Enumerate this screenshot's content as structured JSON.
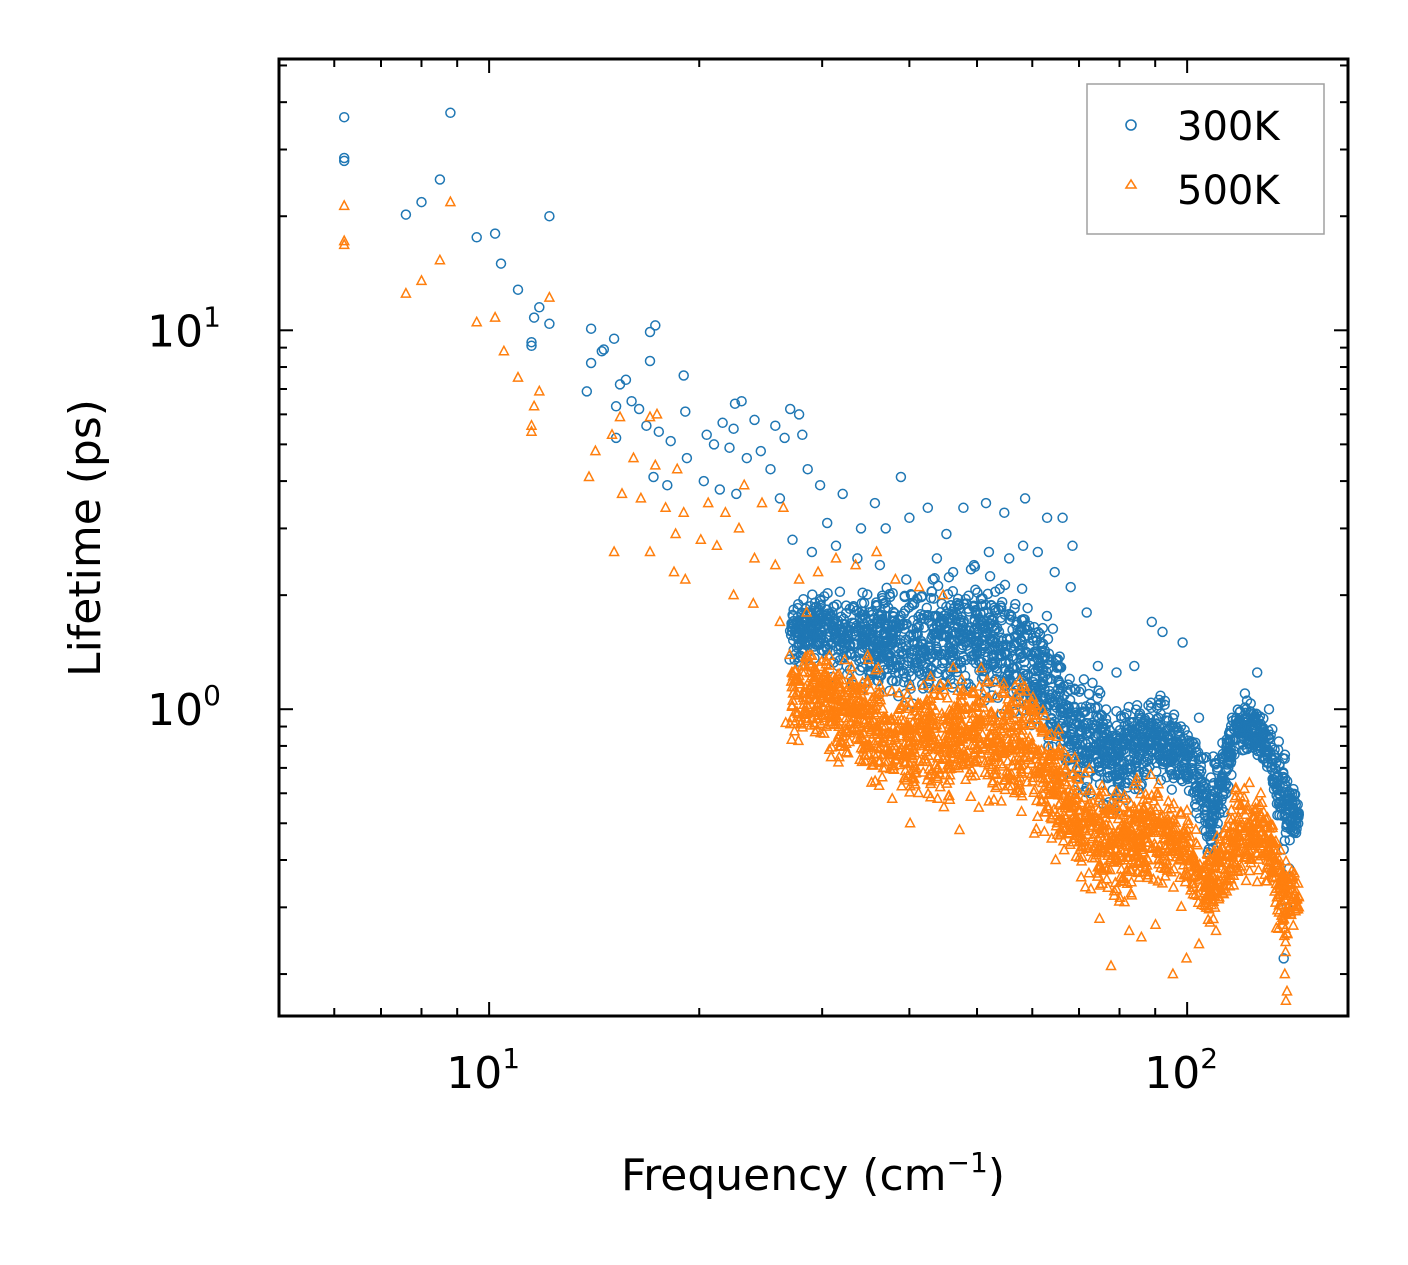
{
  "chart_data": {
    "type": "scatter",
    "title": "",
    "xlabel": "Frequency (cm",
    "xlabel_sup": "−1",
    "xlabel_close": ")",
    "ylabel": "Lifetime (ps)",
    "xscale": "log",
    "yscale": "log",
    "xlim": [
      5.0,
      170.0
    ],
    "ylim": [
      0.155,
      52.0
    ],
    "legend_position": "top-right",
    "x_ticks": [
      {
        "value": 10,
        "base": "10",
        "exp": "1"
      },
      {
        "value": 100,
        "base": "10",
        "exp": "2"
      }
    ],
    "y_ticks": [
      {
        "value": 1,
        "base": "10",
        "exp": "0"
      },
      {
        "value": 10,
        "base": "10",
        "exp": "1"
      }
    ],
    "series": [
      {
        "name": "300K",
        "marker": "circle",
        "color": "#1f77b4",
        "points": [
          [
            6.2,
            36.5
          ],
          [
            6.2,
            28.5
          ],
          [
            6.2,
            28.0
          ],
          [
            8.8,
            37.5
          ],
          [
            8.5,
            25.0
          ],
          [
            8.0,
            21.8
          ],
          [
            7.6,
            20.2
          ],
          [
            12.2,
            20.0
          ],
          [
            9.6,
            17.6
          ],
          [
            10.2,
            18.0
          ],
          [
            10.4,
            15.0
          ],
          [
            11.0,
            12.8
          ],
          [
            11.8,
            11.5
          ],
          [
            11.6,
            10.8
          ],
          [
            12.2,
            10.4
          ],
          [
            11.5,
            9.3
          ],
          [
            11.5,
            9.1
          ],
          [
            14.0,
            10.1
          ],
          [
            17.3,
            10.3
          ],
          [
            17.0,
            9.9
          ],
          [
            15.1,
            9.5
          ],
          [
            14.6,
            8.9
          ],
          [
            14.5,
            8.8
          ],
          [
            14.0,
            8.2
          ],
          [
            17.0,
            8.3
          ],
          [
            15.7,
            7.4
          ],
          [
            15.4,
            7.2
          ],
          [
            19.0,
            7.6
          ],
          [
            13.8,
            6.9
          ],
          [
            16.0,
            6.5
          ],
          [
            15.2,
            6.3
          ],
          [
            16.4,
            6.2
          ],
          [
            19.1,
            6.1
          ],
          [
            23.0,
            6.5
          ],
          [
            22.5,
            6.4
          ],
          [
            27.0,
            6.2
          ],
          [
            27.8,
            6.0
          ],
          [
            24.0,
            5.8
          ],
          [
            21.6,
            5.7
          ],
          [
            22.4,
            5.5
          ],
          [
            25.7,
            5.6
          ],
          [
            26.5,
            5.2
          ],
          [
            28.1,
            5.3
          ],
          [
            16.8,
            5.6
          ],
          [
            17.5,
            5.4
          ],
          [
            15.2,
            5.2
          ],
          [
            18.2,
            5.1
          ],
          [
            20.5,
            5.3
          ],
          [
            21.0,
            5.0
          ],
          [
            22.1,
            4.9
          ],
          [
            23.4,
            4.6
          ],
          [
            24.5,
            4.8
          ],
          [
            25.3,
            4.3
          ],
          [
            28.6,
            4.3
          ],
          [
            19.2,
            4.6
          ],
          [
            17.2,
            4.1
          ],
          [
            18.0,
            3.9
          ],
          [
            20.3,
            4.0
          ],
          [
            21.4,
            3.8
          ],
          [
            22.6,
            3.7
          ],
          [
            26.1,
            3.6
          ],
          [
            29.8,
            3.9
          ],
          [
            32.1,
            3.7
          ],
          [
            35.7,
            3.5
          ],
          [
            38.9,
            4.1
          ],
          [
            42.5,
            3.4
          ],
          [
            30.5,
            3.1
          ],
          [
            34.1,
            3.0
          ],
          [
            37.0,
            3.0
          ],
          [
            40.0,
            3.2
          ],
          [
            45.2,
            2.9
          ],
          [
            47.8,
            3.4
          ],
          [
            51.5,
            3.5
          ],
          [
            54.7,
            3.3
          ],
          [
            58.6,
            3.6
          ],
          [
            63.0,
            3.2
          ],
          [
            66.3,
            3.2
          ],
          [
            68.5,
            2.7
          ],
          [
            27.2,
            2.8
          ],
          [
            29.0,
            2.6
          ],
          [
            31.4,
            2.7
          ],
          [
            33.7,
            2.5
          ],
          [
            36.3,
            2.4
          ],
          [
            39.6,
            2.2
          ],
          [
            43.8,
            2.5
          ],
          [
            46.2,
            2.3
          ],
          [
            49.5,
            2.4
          ],
          [
            52.0,
            2.6
          ],
          [
            55.6,
            2.5
          ],
          [
            58.2,
            2.7
          ],
          [
            61.1,
            2.6
          ],
          [
            64.6,
            2.3
          ],
          [
            68.1,
            2.1
          ],
          [
            71.8,
            1.8
          ],
          [
            74.5,
            1.3
          ],
          [
            79.2,
            1.25
          ],
          [
            84.0,
            1.3
          ],
          [
            89.0,
            1.7
          ],
          [
            92.2,
            1.6
          ],
          [
            98.5,
            1.5
          ],
          [
            104.0,
            0.95
          ],
          [
            109.0,
            0.75
          ],
          [
            116.0,
            0.95
          ],
          [
            121.0,
            1.1
          ],
          [
            126.0,
            1.25
          ],
          [
            131.0,
            1.0
          ],
          [
            136.0,
            0.55
          ],
          [
            138.0,
            0.45
          ],
          [
            140.0,
            0.38
          ],
          [
            139.0,
            0.3
          ],
          [
            137.5,
            0.22
          ]
        ],
        "generated": {
          "n": 2200,
          "seed": 7,
          "xlog_range": [
            1.43,
            2.16
          ],
          "band": [
            {
              "x": 30,
              "lo": 1.2,
              "hi": 2.2
            },
            {
              "x": 40,
              "lo": 0.9,
              "hi": 2.4
            },
            {
              "x": 50,
              "lo": 1.0,
              "hi": 2.6
            },
            {
              "x": 60,
              "lo": 0.75,
              "hi": 2.3
            },
            {
              "x": 70,
              "lo": 0.55,
              "hi": 1.3
            },
            {
              "x": 80,
              "lo": 0.5,
              "hi": 1.1
            },
            {
              "x": 90,
              "lo": 0.6,
              "hi": 1.25
            },
            {
              "x": 100,
              "lo": 0.55,
              "hi": 1.0
            },
            {
              "x": 108,
              "lo": 0.35,
              "hi": 0.75
            },
            {
              "x": 118,
              "lo": 0.7,
              "hi": 1.15
            },
            {
              "x": 128,
              "lo": 0.7,
              "hi": 1.05
            },
            {
              "x": 138,
              "lo": 0.4,
              "hi": 0.8
            },
            {
              "x": 144,
              "lo": 0.45,
              "hi": 0.6
            }
          ]
        }
      },
      {
        "name": "500K",
        "marker": "triangle",
        "color": "#ff7f0e",
        "points": [
          [
            6.2,
            21.3
          ],
          [
            6.2,
            17.2
          ],
          [
            6.2,
            16.8
          ],
          [
            8.8,
            21.8
          ],
          [
            8.5,
            15.3
          ],
          [
            8.0,
            13.5
          ],
          [
            7.6,
            12.5
          ],
          [
            9.6,
            10.5
          ],
          [
            10.2,
            10.8
          ],
          [
            10.5,
            8.8
          ],
          [
            11.0,
            7.5
          ],
          [
            11.8,
            6.9
          ],
          [
            11.6,
            6.3
          ],
          [
            12.2,
            12.2
          ],
          [
            11.5,
            5.6
          ],
          [
            11.5,
            5.4
          ],
          [
            15.0,
            5.3
          ],
          [
            15.4,
            5.9
          ],
          [
            17.0,
            5.9
          ],
          [
            17.4,
            6.0
          ],
          [
            14.2,
            4.8
          ],
          [
            16.1,
            4.6
          ],
          [
            17.3,
            4.4
          ],
          [
            18.6,
            4.3
          ],
          [
            13.9,
            4.1
          ],
          [
            15.5,
            3.7
          ],
          [
            16.5,
            3.6
          ],
          [
            17.9,
            3.4
          ],
          [
            19.0,
            3.3
          ],
          [
            20.6,
            3.5
          ],
          [
            21.8,
            3.3
          ],
          [
            23.2,
            3.9
          ],
          [
            24.6,
            3.5
          ],
          [
            26.4,
            3.4
          ],
          [
            22.8,
            3.0
          ],
          [
            18.5,
            2.9
          ],
          [
            20.1,
            2.8
          ],
          [
            21.2,
            2.7
          ],
          [
            15.1,
            2.6
          ],
          [
            17.0,
            2.6
          ],
          [
            18.4,
            2.3
          ],
          [
            19.1,
            2.2
          ],
          [
            24.0,
            2.5
          ],
          [
            25.7,
            2.4
          ],
          [
            27.8,
            2.2
          ],
          [
            29.6,
            2.3
          ],
          [
            31.4,
            2.5
          ],
          [
            33.5,
            2.4
          ],
          [
            35.9,
            2.6
          ],
          [
            38.2,
            2.2
          ],
          [
            41.3,
            2.1
          ],
          [
            44.7,
            2.0
          ],
          [
            22.4,
            2.0
          ],
          [
            23.9,
            1.9
          ],
          [
            26.1,
            1.7
          ],
          [
            28.5,
            1.8
          ],
          [
            26.6,
            0.92
          ],
          [
            28.0,
            0.92
          ],
          [
            31.5,
            0.82
          ],
          [
            35.3,
            0.64
          ],
          [
            37.8,
            0.58
          ],
          [
            40.1,
            0.5
          ],
          [
            43.9,
            0.58
          ],
          [
            47.2,
            0.48
          ],
          [
            50.3,
            0.55
          ],
          [
            55.0,
            0.66
          ],
          [
            60.4,
            0.47
          ],
          [
            64.8,
            0.4
          ],
          [
            70.5,
            0.36
          ],
          [
            74.9,
            0.28
          ],
          [
            77.8,
            0.21
          ],
          [
            82.6,
            0.26
          ],
          [
            86.0,
            0.25
          ],
          [
            90.1,
            0.27
          ],
          [
            95.4,
            0.2
          ],
          [
            99.8,
            0.22
          ],
          [
            104.0,
            0.24
          ],
          [
            110.0,
            0.26
          ],
          [
            118.0,
            0.38
          ],
          [
            126.0,
            0.35
          ],
          [
            131.0,
            0.38
          ],
          [
            137.0,
            0.27
          ],
          [
            138.0,
            0.2
          ],
          [
            138.5,
            0.17
          ],
          [
            139.0,
            0.18
          ],
          [
            141.5,
            0.36
          ]
        ],
        "generated": {
          "n": 2200,
          "seed": 13,
          "xlog_range": [
            1.43,
            2.16
          ],
          "band": [
            {
              "x": 30,
              "lo": 0.75,
              "hi": 1.6
            },
            {
              "x": 40,
              "lo": 0.5,
              "hi": 1.3
            },
            {
              "x": 50,
              "lo": 0.55,
              "hi": 1.4
            },
            {
              "x": 60,
              "lo": 0.45,
              "hi": 1.35
            },
            {
              "x": 70,
              "lo": 0.32,
              "hi": 0.8
            },
            {
              "x": 80,
              "lo": 0.28,
              "hi": 0.7
            },
            {
              "x": 90,
              "lo": 0.3,
              "hi": 0.75
            },
            {
              "x": 100,
              "lo": 0.27,
              "hi": 0.6
            },
            {
              "x": 108,
              "lo": 0.24,
              "hi": 0.45
            },
            {
              "x": 118,
              "lo": 0.32,
              "hi": 0.7
            },
            {
              "x": 128,
              "lo": 0.35,
              "hi": 0.65
            },
            {
              "x": 138,
              "lo": 0.22,
              "hi": 0.45
            },
            {
              "x": 144,
              "lo": 0.25,
              "hi": 0.4
            }
          ]
        }
      }
    ]
  }
}
